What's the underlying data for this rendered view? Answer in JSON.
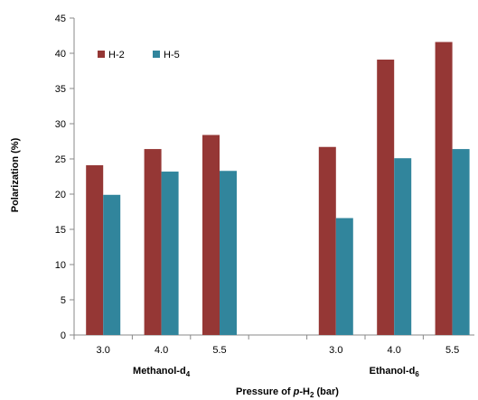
{
  "chart_data": {
    "type": "bar",
    "groups": [
      {
        "label_main": "Methanol-d",
        "label_sub": "4",
        "categories": [
          "3.0",
          "4.0",
          "5.5"
        ]
      },
      {
        "label_main": "Ethanol-d",
        "label_sub": "6",
        "categories": [
          "3.0",
          "4.0",
          "5.5"
        ]
      }
    ],
    "series": [
      {
        "name": "H-2",
        "color": "#953735",
        "values": [
          24.1,
          26.4,
          28.4,
          26.7,
          39.1,
          41.6
        ]
      },
      {
        "name": "H-5",
        "color": "#31859c",
        "values": [
          19.9,
          23.2,
          23.3,
          16.6,
          25.1,
          26.4
        ]
      }
    ],
    "ylabel": "Polarization (%)",
    "xlabel": {
      "prefix": "Pressure of ",
      "italic": "p",
      "mid": "-H",
      "sub": "2",
      "suffix": " (bar)"
    },
    "ylim": [
      0,
      45
    ],
    "yticks": [
      0,
      5,
      10,
      15,
      20,
      25,
      30,
      35,
      40,
      45
    ],
    "grid": false,
    "legend_position": "top-left"
  }
}
